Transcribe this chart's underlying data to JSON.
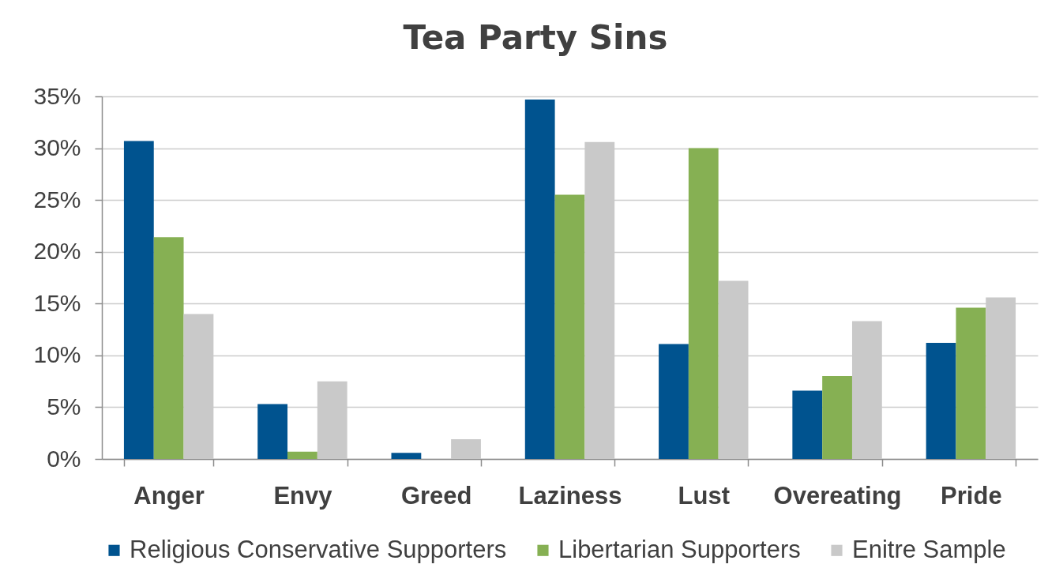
{
  "chart_data": {
    "type": "bar",
    "title": "Tea Party Sins",
    "categories": [
      "Anger",
      "Envy",
      "Greed",
      "Laziness",
      "Lust",
      "Overeating",
      "Pride"
    ],
    "series": [
      {
        "name": "Religious Conservative Supporters",
        "color": "#00538f",
        "values": [
          30.7,
          5.3,
          0.6,
          34.7,
          11.1,
          6.6,
          11.2
        ]
      },
      {
        "name": "Libertarian Supporters",
        "color": "#86b053",
        "values": [
          21.4,
          0.7,
          0,
          25.5,
          30.0,
          8.0,
          14.6
        ]
      },
      {
        "name": "Enitre Sample",
        "color": "#c9c9c9",
        "values": [
          14.0,
          7.5,
          1.9,
          30.6,
          17.2,
          13.3,
          15.6
        ]
      }
    ],
    "ylim": [
      0,
      35
    ],
    "yticks": [
      {
        "value": 0,
        "label": "0%"
      },
      {
        "value": 5,
        "label": "5%"
      },
      {
        "value": 10,
        "label": "10%"
      },
      {
        "value": 15,
        "label": "15%"
      },
      {
        "value": 20,
        "label": "20%"
      },
      {
        "value": 25,
        "label": "25%"
      },
      {
        "value": 30,
        "label": "30%"
      },
      {
        "value": 35,
        "label": "35%"
      }
    ],
    "grid": "y",
    "legend": "bottom"
  }
}
